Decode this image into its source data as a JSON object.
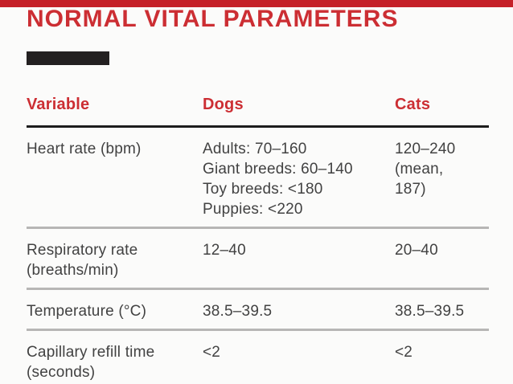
{
  "page": {
    "title": "NORMAL VITAL PARAMETERS"
  },
  "colors": {
    "top_bar": "#c52028",
    "accent": "#cc2e33",
    "black_bar": "#232021",
    "header_rule": "#1d1d1d",
    "row_rule": "#b7b6b5",
    "body_text": "#424242",
    "background": "#fbfbfa"
  },
  "table": {
    "headers": [
      "Variable",
      "Dogs",
      "Cats"
    ],
    "rows": [
      {
        "variable": [
          "Heart rate (bpm)"
        ],
        "dogs": [
          "Adults: 70–160",
          "Giant breeds: 60–140",
          "Toy breeds: <180",
          "Puppies: <220"
        ],
        "cats": [
          "120–240",
          "(mean,",
          "187)"
        ]
      },
      {
        "variable": [
          "Respiratory rate",
          "(breaths/min)"
        ],
        "dogs": [
          "12–40"
        ],
        "cats": [
          "20–40"
        ]
      },
      {
        "variable": [
          "Temperature (°C)"
        ],
        "dogs": [
          "38.5–39.5"
        ],
        "cats": [
          "38.5–39.5"
        ]
      },
      {
        "variable": [
          "Capillary refill time",
          "(seconds)"
        ],
        "dogs": [
          "<2"
        ],
        "cats": [
          "<2"
        ]
      }
    ]
  }
}
